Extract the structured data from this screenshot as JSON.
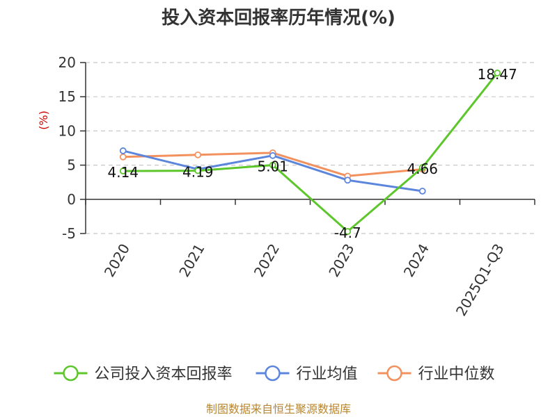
{
  "chart_data": {
    "type": "line",
    "title": "投入资本回报率历年情况(%)",
    "ylabel": "(%)",
    "categories": [
      "2020",
      "2021",
      "2022",
      "2023",
      "2024",
      "2025Q1-Q3"
    ],
    "ylim": [
      -5,
      20
    ],
    "yticks": [
      -5,
      0,
      5,
      10,
      15,
      20
    ],
    "grid": true,
    "legend_position": "bottom",
    "series": [
      {
        "name": "公司投入资本回报率",
        "color": "#5cc62a",
        "values": [
          4.14,
          4.19,
          5.01,
          -4.7,
          4.66,
          18.47
        ],
        "labels": [
          "4.14",
          "4.19",
          "5.01",
          "-4.7",
          "4.66",
          "18.47"
        ]
      },
      {
        "name": "行业均值",
        "color": "#5b86dc",
        "values": [
          7.1,
          4.4,
          6.4,
          2.8,
          1.2,
          null
        ]
      },
      {
        "name": "行业中位数",
        "color": "#f2915e",
        "values": [
          6.2,
          6.5,
          6.8,
          3.4,
          4.4,
          null
        ]
      }
    ],
    "source": "制图数据来自恒生聚源数据库"
  }
}
